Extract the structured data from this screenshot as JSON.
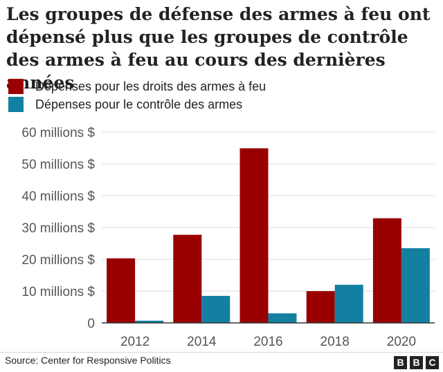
{
  "header": {
    "title": "Les groupes de défense des armes à feu ont dépensé plus que les groupes de contrôle des armes à feu au cours des dernières années"
  },
  "legend": [
    {
      "label": "Dépenses pour les droits des armes à feu",
      "color": "#990000"
    },
    {
      "label": "Dépenses pour le contrôle des armes",
      "color": "#1380a1"
    }
  ],
  "chart_data": {
    "type": "bar",
    "title": "Les groupes de défense des armes à feu ont dépensé plus que les groupes de contrôle des armes à feu au cours des dernières années",
    "xlabel": "",
    "ylabel": "",
    "categories": [
      "2012",
      "2014",
      "2016",
      "2018",
      "2020"
    ],
    "series": [
      {
        "name": "Dépenses pour les droits des armes à feu",
        "color": "#990000",
        "values": [
          20.3,
          27.7,
          54.9,
          10.0,
          32.9
        ]
      },
      {
        "name": "Dépenses pour le contrôle des armes",
        "color": "#1380a1",
        "values": [
          0.7,
          8.5,
          3.0,
          12.0,
          23.5
        ]
      }
    ],
    "ylim": [
      0,
      60
    ],
    "yticks": [
      0,
      10,
      20,
      30,
      40,
      50,
      60
    ],
    "ytick_labels": [
      "0",
      "10 millions $",
      "20 millions $",
      "30 millions $",
      "40 millions $",
      "50 millions $",
      "60 millions $"
    ],
    "grid": true,
    "legend_position": "top-left"
  },
  "footer": {
    "source": "Source: Center for Responsive Politics",
    "logo_letters": [
      "B",
      "B",
      "C"
    ]
  }
}
